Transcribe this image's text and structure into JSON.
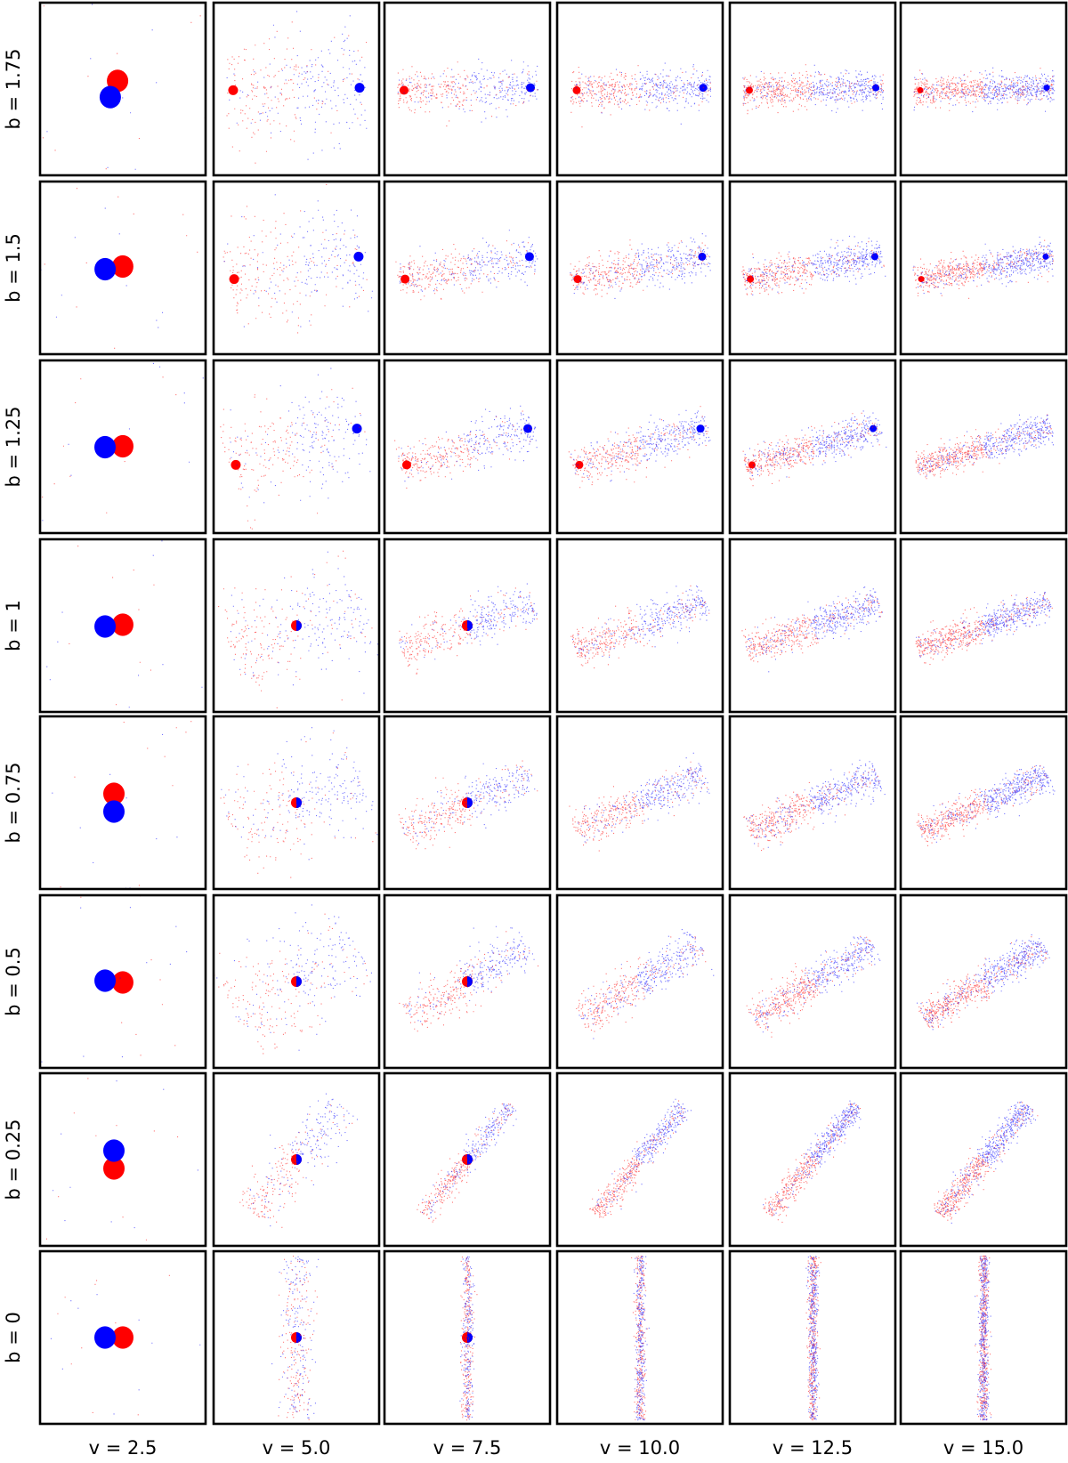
{
  "chart_data": {
    "type": "scatter",
    "layout": "small-multiples grid",
    "grid": false,
    "axes_visible": false,
    "series_colors": {
      "blob_a": "#ff0000",
      "blob_b": "#0000ff"
    },
    "row_labels": [
      "b = 1.75",
      "b = 1.5",
      "b = 1.25",
      "b = 1",
      "b = 0.75",
      "b = 0.5",
      "b = 0.25",
      "b = 0"
    ],
    "col_labels": [
      "v = 2.5",
      "v = 5.0",
      "v = 7.5",
      "v = 10.0",
      "v = 12.5",
      "v = 15.0"
    ],
    "b_values": [
      1.75,
      1.5,
      1.25,
      1,
      0.75,
      0.5,
      0.25,
      0
    ],
    "v_values": [
      2.5,
      5.0,
      7.5,
      10.0,
      12.5,
      15.0
    ]
  }
}
